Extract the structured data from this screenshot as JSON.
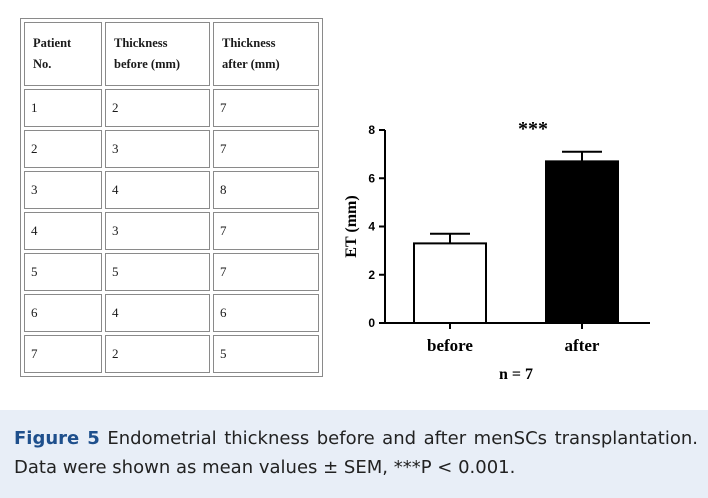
{
  "table": {
    "headers": [
      "Patient No.",
      "Thickness before (mm)",
      "Thickness after (mm)"
    ],
    "header_lines": [
      [
        "Patient",
        "No."
      ],
      [
        "Thickness",
        "before (mm)"
      ],
      [
        "Thickness",
        "after (mm)"
      ]
    ],
    "rows": [
      [
        "1",
        "2",
        "7"
      ],
      [
        "2",
        "3",
        "7"
      ],
      [
        "3",
        "4",
        "8"
      ],
      [
        "4",
        "3",
        "7"
      ],
      [
        "5",
        "5",
        "7"
      ],
      [
        "6",
        "4",
        "6"
      ],
      [
        "7",
        "2",
        "5"
      ]
    ]
  },
  "chart_data": {
    "type": "bar",
    "categories": [
      "before",
      "after"
    ],
    "values": [
      3.3,
      6.7
    ],
    "errors": [
      0.4,
      0.4
    ],
    "ylabel": "ET (mm)",
    "xlabel": "n = 7",
    "ylim": [
      0,
      8
    ],
    "yticks": [
      0,
      2,
      4,
      6,
      8
    ],
    "annotation": "***",
    "colors": [
      "#ffffff",
      "#000000"
    ],
    "grid": false
  },
  "caption": {
    "label": "Figure 5",
    "text": " Endometrial thickness before and after menSCs transplantation. Data were shown as mean values ± SEM, ***P < 0.001."
  }
}
